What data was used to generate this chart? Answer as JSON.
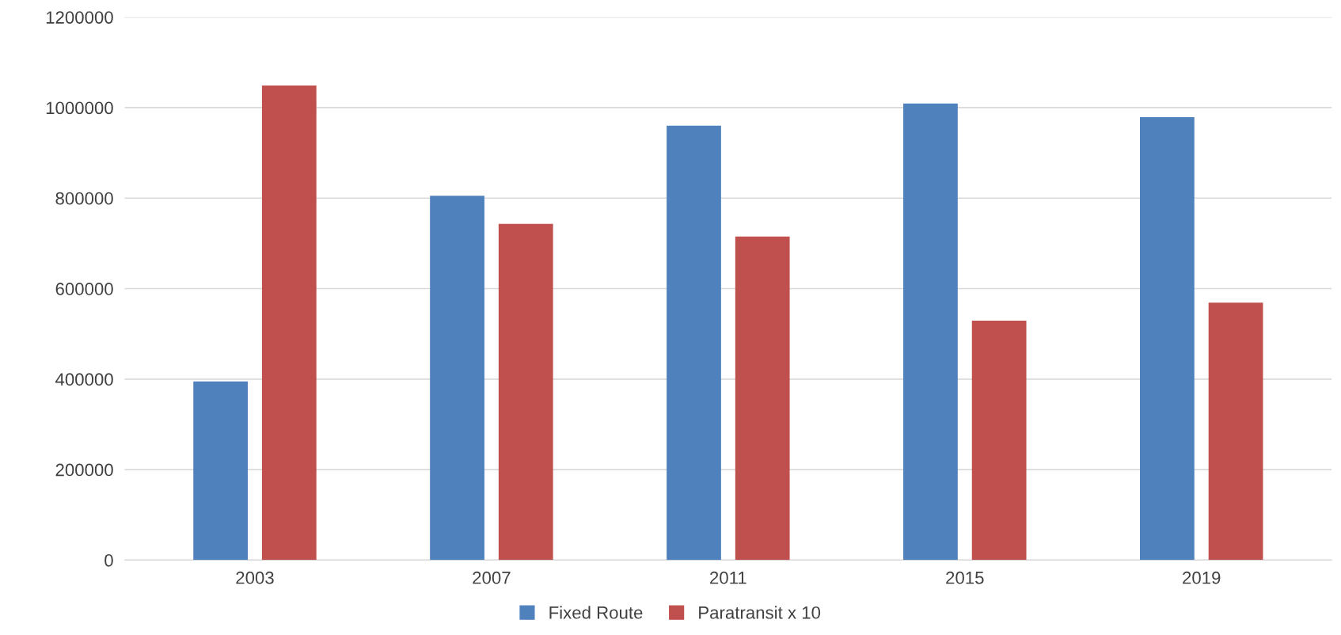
{
  "chart_data": {
    "type": "bar",
    "categories": [
      "2003",
      "2007",
      "2011",
      "2015",
      "2019"
    ],
    "series": [
      {
        "name": "Fixed Route",
        "color": "#4f81bd",
        "values": [
          395000,
          805000,
          960000,
          1009000,
          979000
        ]
      },
      {
        "name": "Paratransit x 10",
        "color": "#c0504d",
        "values": [
          1049000,
          743000,
          715000,
          529000,
          569000
        ]
      }
    ],
    "ylim": [
      0,
      1200000
    ],
    "yticks": [
      0,
      200000,
      400000,
      600000,
      800000,
      1000000,
      1200000
    ],
    "grid": "y",
    "legend": "bottom"
  }
}
